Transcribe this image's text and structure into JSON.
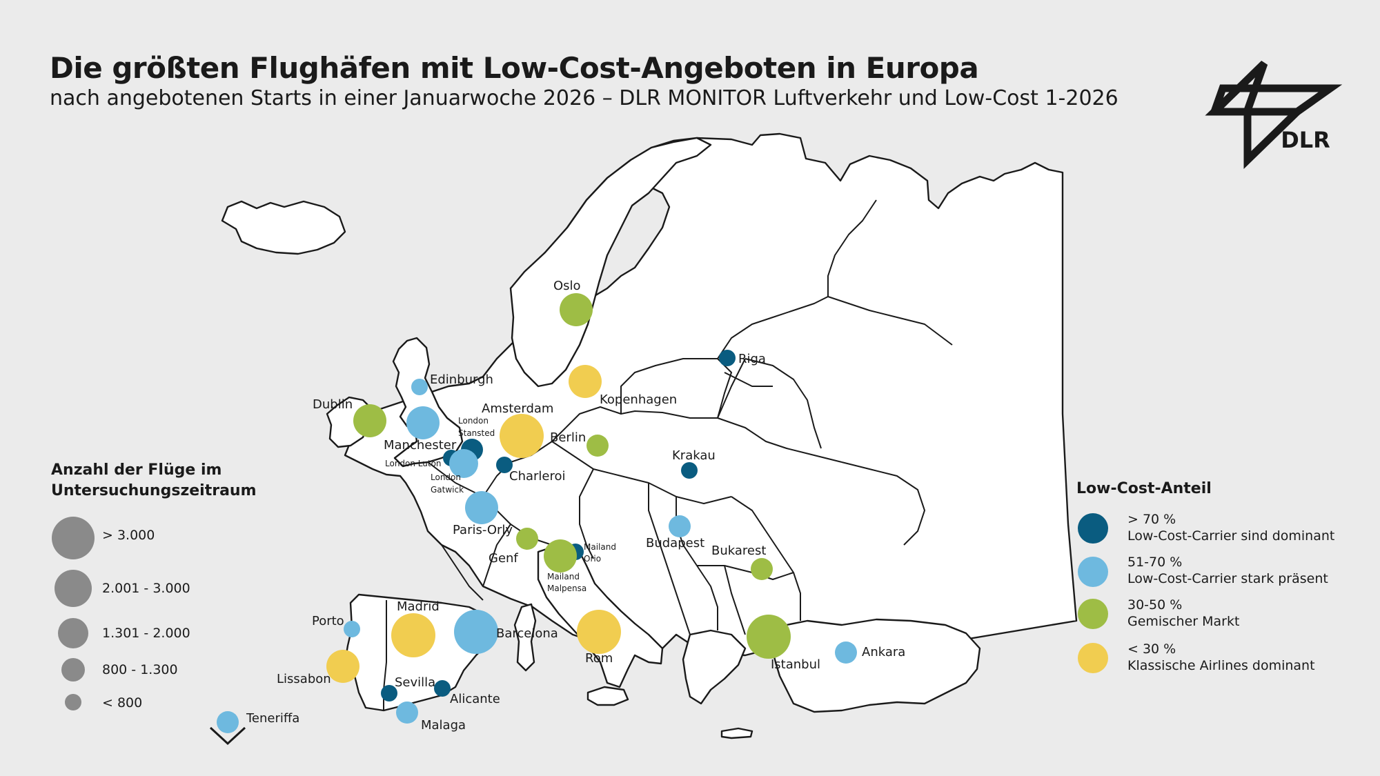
{
  "header": {
    "title": "Die größten Flughäfen mit Low-Cost-Angeboten in Europa",
    "subtitle": "nach angebotenen Starts in einer Januarwoche 2026 – DLR MONITOR Luftverkehr und Low-Cost 1-2026"
  },
  "logo": {
    "text": "DLR"
  },
  "size_legend": {
    "title_line1": "Anzahl der Flüge im",
    "title_line2": "Untersuchungszeitraum",
    "items": [
      {
        "label": "> 3.000"
      },
      {
        "label": "2.001 - 3.000"
      },
      {
        "label": "1.301 - 2.000"
      },
      {
        "label": "800 - 1.300"
      },
      {
        "label": "< 800"
      }
    ]
  },
  "share_legend": {
    "title": "Low-Cost-Anteil",
    "items": [
      {
        "label": "> 70 %",
        "desc": "Low-Cost-Carrier sind dominant",
        "color": "#0a5c80"
      },
      {
        "label": "51-70 %",
        "desc": "Low-Cost-Carrier stark präsent",
        "color": "#6eb9df"
      },
      {
        "label": "30-50 %",
        "desc": "Gemischer Markt",
        "color": "#9ebd45"
      },
      {
        "label": "< 30 %",
        "desc": "Klassische Airlines dominant",
        "color": "#f1cd50"
      }
    ]
  },
  "airports": [
    {
      "name": "Oslo",
      "size_class": 3,
      "share_class": 2
    },
    {
      "name": "Riga",
      "size_class": 0,
      "share_class": 0
    },
    {
      "name": "Edinburgh",
      "size_class": 0,
      "share_class": 1
    },
    {
      "name": "Kopenhagen",
      "size_class": 3,
      "share_class": 3
    },
    {
      "name": "Dublin",
      "size_class": 3,
      "share_class": 2
    },
    {
      "name": "Manchester",
      "size_class": 3,
      "share_class": 1
    },
    {
      "name": "Amsterdam",
      "size_class": 4,
      "share_class": 3
    },
    {
      "name": "London Stansted",
      "size_class": 1,
      "share_class": 0
    },
    {
      "name": "London Luton",
      "size_class": 0,
      "share_class": 0
    },
    {
      "name": "London Gatwick",
      "size_class": 2,
      "share_class": 1
    },
    {
      "name": "Berlin",
      "size_class": 1,
      "share_class": 2
    },
    {
      "name": "Charleroi",
      "size_class": 0,
      "share_class": 0
    },
    {
      "name": "Krakau",
      "size_class": 0,
      "share_class": 0
    },
    {
      "name": "Paris-Orly",
      "size_class": 3,
      "share_class": 1
    },
    {
      "name": "Genf",
      "size_class": 1,
      "share_class": 2
    },
    {
      "name": "Mailand Orio",
      "size_class": 0,
      "share_class": 0
    },
    {
      "name": "Mailand Malpensa",
      "size_class": 3,
      "share_class": 2
    },
    {
      "name": "Budapest",
      "size_class": 1,
      "share_class": 1
    },
    {
      "name": "Bukarest",
      "size_class": 1,
      "share_class": 2
    },
    {
      "name": "Madrid",
      "size_class": 4,
      "share_class": 3
    },
    {
      "name": "Barcelona",
      "size_class": 4,
      "share_class": 1
    },
    {
      "name": "Rom",
      "size_class": 4,
      "share_class": 3
    },
    {
      "name": "Istanbul",
      "size_class": 4,
      "share_class": 2
    },
    {
      "name": "Ankara",
      "size_class": 1,
      "share_class": 1
    },
    {
      "name": "Porto",
      "size_class": 0,
      "share_class": 1
    },
    {
      "name": "Lissabon",
      "size_class": 3,
      "share_class": 3
    },
    {
      "name": "Sevilla",
      "size_class": 0,
      "share_class": 0
    },
    {
      "name": "Alicante",
      "size_class": 0,
      "share_class": 0
    },
    {
      "name": "Malaga",
      "size_class": 1,
      "share_class": 1
    },
    {
      "name": "Teneriffa",
      "size_class": 1,
      "share_class": 1
    }
  ],
  "labels": {
    "oslo": "Oslo",
    "riga": "Riga",
    "edinburgh": "Edinburgh",
    "kopenhagen": "Kopenhagen",
    "dublin": "Dublin",
    "manchester": "Manchester",
    "amsterdam": "Amsterdam",
    "london_stansted_1": "London",
    "london_stansted_2": "Stansted",
    "london_luton": "London Luton",
    "london_gatwick_1": "London",
    "london_gatwick_2": "Gatwick",
    "berlin": "Berlin",
    "charleroi": "Charleroi",
    "krakau": "Krakau",
    "paris_orly": "Paris-Orly",
    "genf": "Genf",
    "mailand_orio_1": "Mailand",
    "mailand_orio_2": "Orio",
    "mailand_malpensa_1": "Mailand",
    "mailand_malpensa_2": "Malpensa",
    "budapest": "Budapest",
    "bukarest": "Bukarest",
    "madrid": "Madrid",
    "barcelona": "Barcelona",
    "rom": "Rom",
    "istanbul": "Istanbul",
    "ankara": "Ankara",
    "porto": "Porto",
    "lissabon": "Lissabon",
    "sevilla": "Sevilla",
    "alicante": "Alicante",
    "malaga": "Malaga",
    "teneriffa": "Teneriffa"
  }
}
